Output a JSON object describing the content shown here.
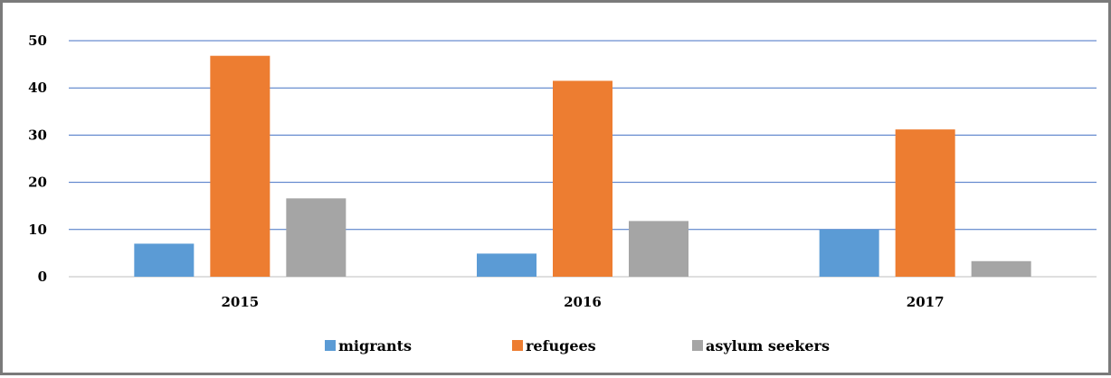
{
  "chart_data": {
    "type": "bar",
    "categories": [
      "2015",
      "2016",
      "2017"
    ],
    "series": [
      {
        "name": "migrants",
        "color": "#5b9bd5",
        "values": [
          7,
          4.9,
          10
        ]
      },
      {
        "name": "refugees",
        "color": "#ed7d31",
        "values": [
          46.8,
          41.5,
          31.2
        ]
      },
      {
        "name": "asylum seekers",
        "color": "#a5a5a5",
        "values": [
          16.6,
          11.8,
          3.3
        ]
      }
    ],
    "ylim": [
      0,
      50
    ],
    "yticks": [
      "0",
      "10",
      "20",
      "30",
      "40",
      "50"
    ],
    "grid": true,
    "gridline_color": "#4472c4",
    "legend_position": "bottom"
  }
}
